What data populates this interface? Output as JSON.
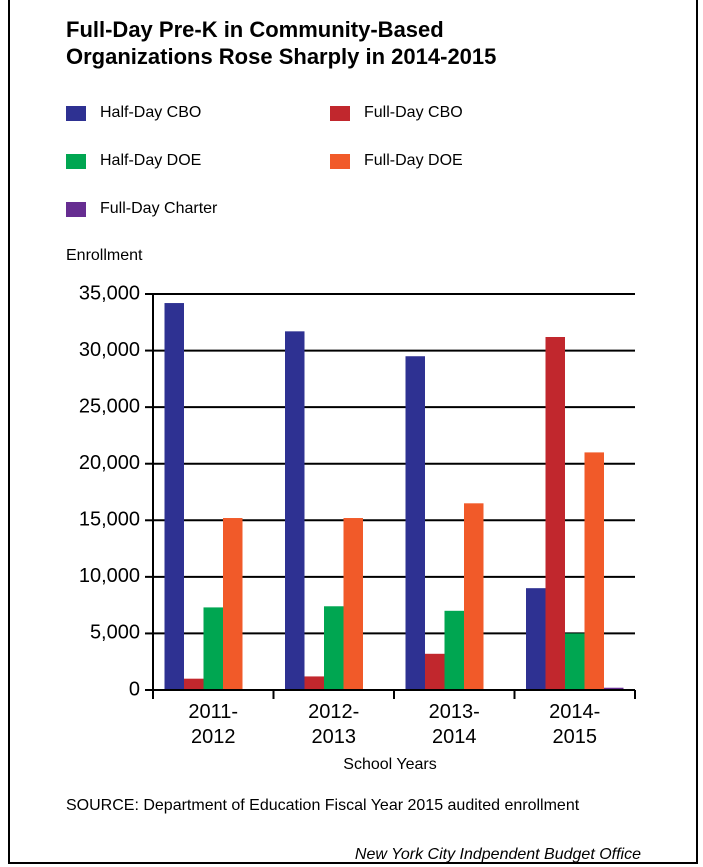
{
  "chart_data": {
    "type": "bar",
    "title": "Full-Day Pre-K in Community-Based Organizations Rose Sharply in 2014-2015",
    "y_axis_label": "Enrollment",
    "x_axis_label": "School Years",
    "source": "SOURCE: Department of Education Fiscal Year 2015 audited enrollment",
    "credit": "New York City Indpendent Budget Office",
    "categories": [
      "2011-2012",
      "2012-2013",
      "2013-2014",
      "2014-2015"
    ],
    "series": [
      {
        "name": "Half-Day CBO",
        "color": "#2e3192",
        "values": [
          34200,
          31700,
          29500,
          9000
        ]
      },
      {
        "name": "Full-Day CBO",
        "color": "#c1272d",
        "values": [
          1000,
          1200,
          3200,
          31200
        ]
      },
      {
        "name": "Half-Day DOE",
        "color": "#00a651",
        "values": [
          7300,
          7400,
          7000,
          5000
        ]
      },
      {
        "name": "Full-Day DOE",
        "color": "#f15a29",
        "values": [
          15200,
          15200,
          16500,
          21000
        ]
      },
      {
        "name": "Full-Day Charter",
        "color": "#662d91",
        "values": [
          0,
          0,
          0,
          200
        ]
      }
    ],
    "ylim": [
      0,
      35000
    ],
    "yticks": [
      0,
      {
        "value": 5000,
        "label": "5,000"
      },
      {
        "value": 10000,
        "label": "10,000"
      },
      {
        "value": 15000,
        "label": "15,000"
      },
      {
        "value": 20000,
        "label": "20,000"
      },
      {
        "value": 25000,
        "label": "25,000"
      },
      {
        "value": 30000,
        "label": "30,000"
      },
      {
        "value": 35000,
        "label": "35,000"
      }
    ],
    "grid": true
  }
}
